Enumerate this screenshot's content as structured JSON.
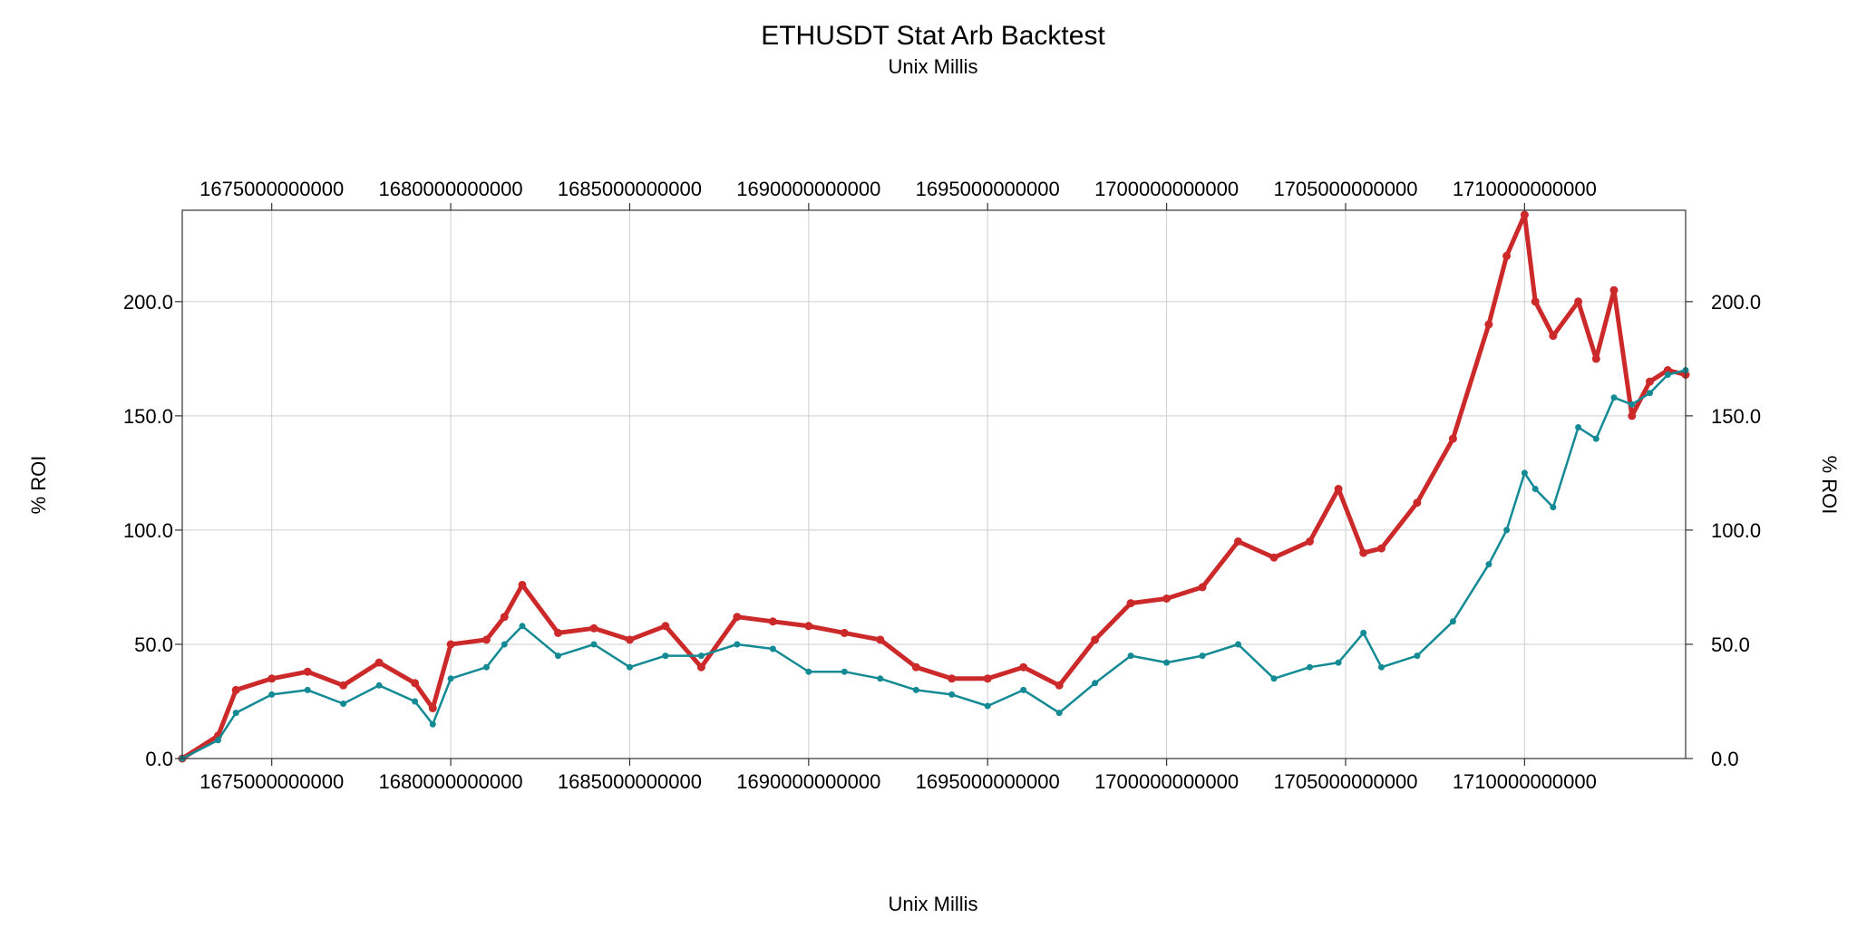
{
  "chart_data": {
    "type": "line",
    "title": "ETHUSDT Stat Arb Backtest",
    "subtitle": "Unix Millis",
    "xlabel": "Unix Millis",
    "ylabel": "% ROI",
    "xlim": [
      1672500000000,
      1714500000000
    ],
    "ylim": [
      0,
      240
    ],
    "x_ticks": [
      {
        "value": 1675000000000,
        "label": "1675000000000"
      },
      {
        "value": 1680000000000,
        "label": "1680000000000"
      },
      {
        "value": 1685000000000,
        "label": "1685000000000"
      },
      {
        "value": 1690000000000,
        "label": "1690000000000"
      },
      {
        "value": 1695000000000,
        "label": "1695000000000"
      },
      {
        "value": 1700000000000,
        "label": "1700000000000"
      },
      {
        "value": 1705000000000,
        "label": "1705000000000"
      },
      {
        "value": 1710000000000,
        "label": "1710000000000"
      }
    ],
    "y_ticks": [
      {
        "value": 0,
        "label": "0.0"
      },
      {
        "value": 50,
        "label": "50.0"
      },
      {
        "value": 100,
        "label": "100.0"
      },
      {
        "value": 150,
        "label": "150.0"
      },
      {
        "value": 200,
        "label": "200.0"
      }
    ],
    "grid": true,
    "series": [
      {
        "color": "#cc2a2a",
        "x": [
          1672500000000,
          1673500000000,
          1674000000000,
          1675000000000,
          1676000000000,
          1677000000000,
          1678000000000,
          1679000000000,
          1679500000000,
          1680000000000,
          1681000000000,
          1681500000000,
          1682000000000,
          1683000000000,
          1684000000000,
          1685000000000,
          1686000000000,
          1687000000000,
          1688000000000,
          1689000000000,
          1690000000000,
          1691000000000,
          1692000000000,
          1693000000000,
          1694000000000,
          1695000000000,
          1696000000000,
          1697000000000,
          1698000000000,
          1699000000000,
          1700000000000,
          1701000000000,
          1702000000000,
          1703000000000,
          1704000000000,
          1704800000000,
          1705500000000,
          1706000000000,
          1707000000000,
          1708000000000,
          1709000000000,
          1709500000000,
          1710000000000,
          1710300000000,
          1710800000000,
          1711500000000,
          1712000000000,
          1712500000000,
          1713000000000,
          1713500000000,
          1714000000000,
          1714500000000
        ],
        "y": [
          0,
          10,
          30,
          35,
          38,
          32,
          42,
          33,
          22,
          50,
          52,
          62,
          76,
          55,
          57,
          52,
          58,
          40,
          62,
          60,
          58,
          55,
          52,
          40,
          35,
          35,
          40,
          32,
          52,
          68,
          70,
          75,
          95,
          88,
          95,
          118,
          90,
          92,
          112,
          140,
          190,
          220,
          238,
          200,
          185,
          200,
          175,
          205,
          150,
          165,
          170,
          168
        ]
      },
      {
        "color": "#138a94",
        "x": [
          1672500000000,
          1673500000000,
          1674000000000,
          1675000000000,
          1676000000000,
          1677000000000,
          1678000000000,
          1679000000000,
          1679500000000,
          1680000000000,
          1681000000000,
          1681500000000,
          1682000000000,
          1683000000000,
          1684000000000,
          1685000000000,
          1686000000000,
          1687000000000,
          1688000000000,
          1689000000000,
          1690000000000,
          1691000000000,
          1692000000000,
          1693000000000,
          1694000000000,
          1695000000000,
          1696000000000,
          1697000000000,
          1698000000000,
          1699000000000,
          1700000000000,
          1701000000000,
          1702000000000,
          1703000000000,
          1704000000000,
          1704800000000,
          1705500000000,
          1706000000000,
          1707000000000,
          1708000000000,
          1709000000000,
          1709500000000,
          1710000000000,
          1710300000000,
          1710800000000,
          1711500000000,
          1712000000000,
          1712500000000,
          1713000000000,
          1713500000000,
          1714000000000,
          1714500000000
        ],
        "y": [
          0,
          8,
          20,
          28,
          30,
          24,
          32,
          25,
          15,
          35,
          40,
          50,
          58,
          45,
          50,
          40,
          45,
          45,
          50,
          48,
          38,
          38,
          35,
          30,
          28,
          23,
          30,
          20,
          33,
          45,
          42,
          45,
          50,
          35,
          40,
          42,
          55,
          40,
          45,
          60,
          85,
          100,
          125,
          118,
          110,
          145,
          140,
          158,
          155,
          160,
          168,
          170
        ]
      }
    ]
  }
}
